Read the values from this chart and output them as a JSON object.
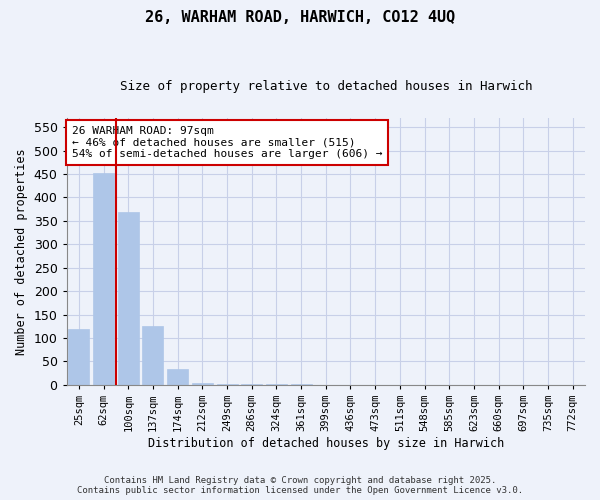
{
  "title_line1": "26, WARHAM ROAD, HARWICH, CO12 4UQ",
  "title_line2": "Size of property relative to detached houses in Harwich",
  "xlabel": "Distribution of detached houses by size in Harwich",
  "ylabel": "Number of detached properties",
  "bar_labels": [
    "25sqm",
    "62sqm",
    "100sqm",
    "137sqm",
    "174sqm",
    "212sqm",
    "249sqm",
    "286sqm",
    "324sqm",
    "361sqm",
    "399sqm",
    "436sqm",
    "473sqm",
    "511sqm",
    "548sqm",
    "585sqm",
    "623sqm",
    "660sqm",
    "697sqm",
    "735sqm",
    "772sqm"
  ],
  "bar_values": [
    120,
    452,
    370,
    125,
    35,
    5,
    3,
    2,
    1,
    1,
    0,
    0,
    0,
    0,
    0,
    0,
    0,
    0,
    0,
    0,
    0
  ],
  "bar_color": "#aec6e8",
  "bar_edgecolor": "#aec6e8",
  "ylim": [
    0,
    570
  ],
  "yticks": [
    0,
    50,
    100,
    150,
    200,
    250,
    300,
    350,
    400,
    450,
    500,
    550
  ],
  "vline_x": 1.5,
  "annotation_text": "26 WARHAM ROAD: 97sqm\n← 46% of detached houses are smaller (515)\n54% of semi-detached houses are larger (606) →",
  "annotation_box_color": "#ffffff",
  "annotation_box_edgecolor": "#cc0000",
  "vline_color": "#cc0000",
  "footer_line1": "Contains HM Land Registry data © Crown copyright and database right 2025.",
  "footer_line2": "Contains public sector information licensed under the Open Government Licence v3.0.",
  "bg_color": "#eef2fa",
  "grid_color": "#c8d0e8"
}
